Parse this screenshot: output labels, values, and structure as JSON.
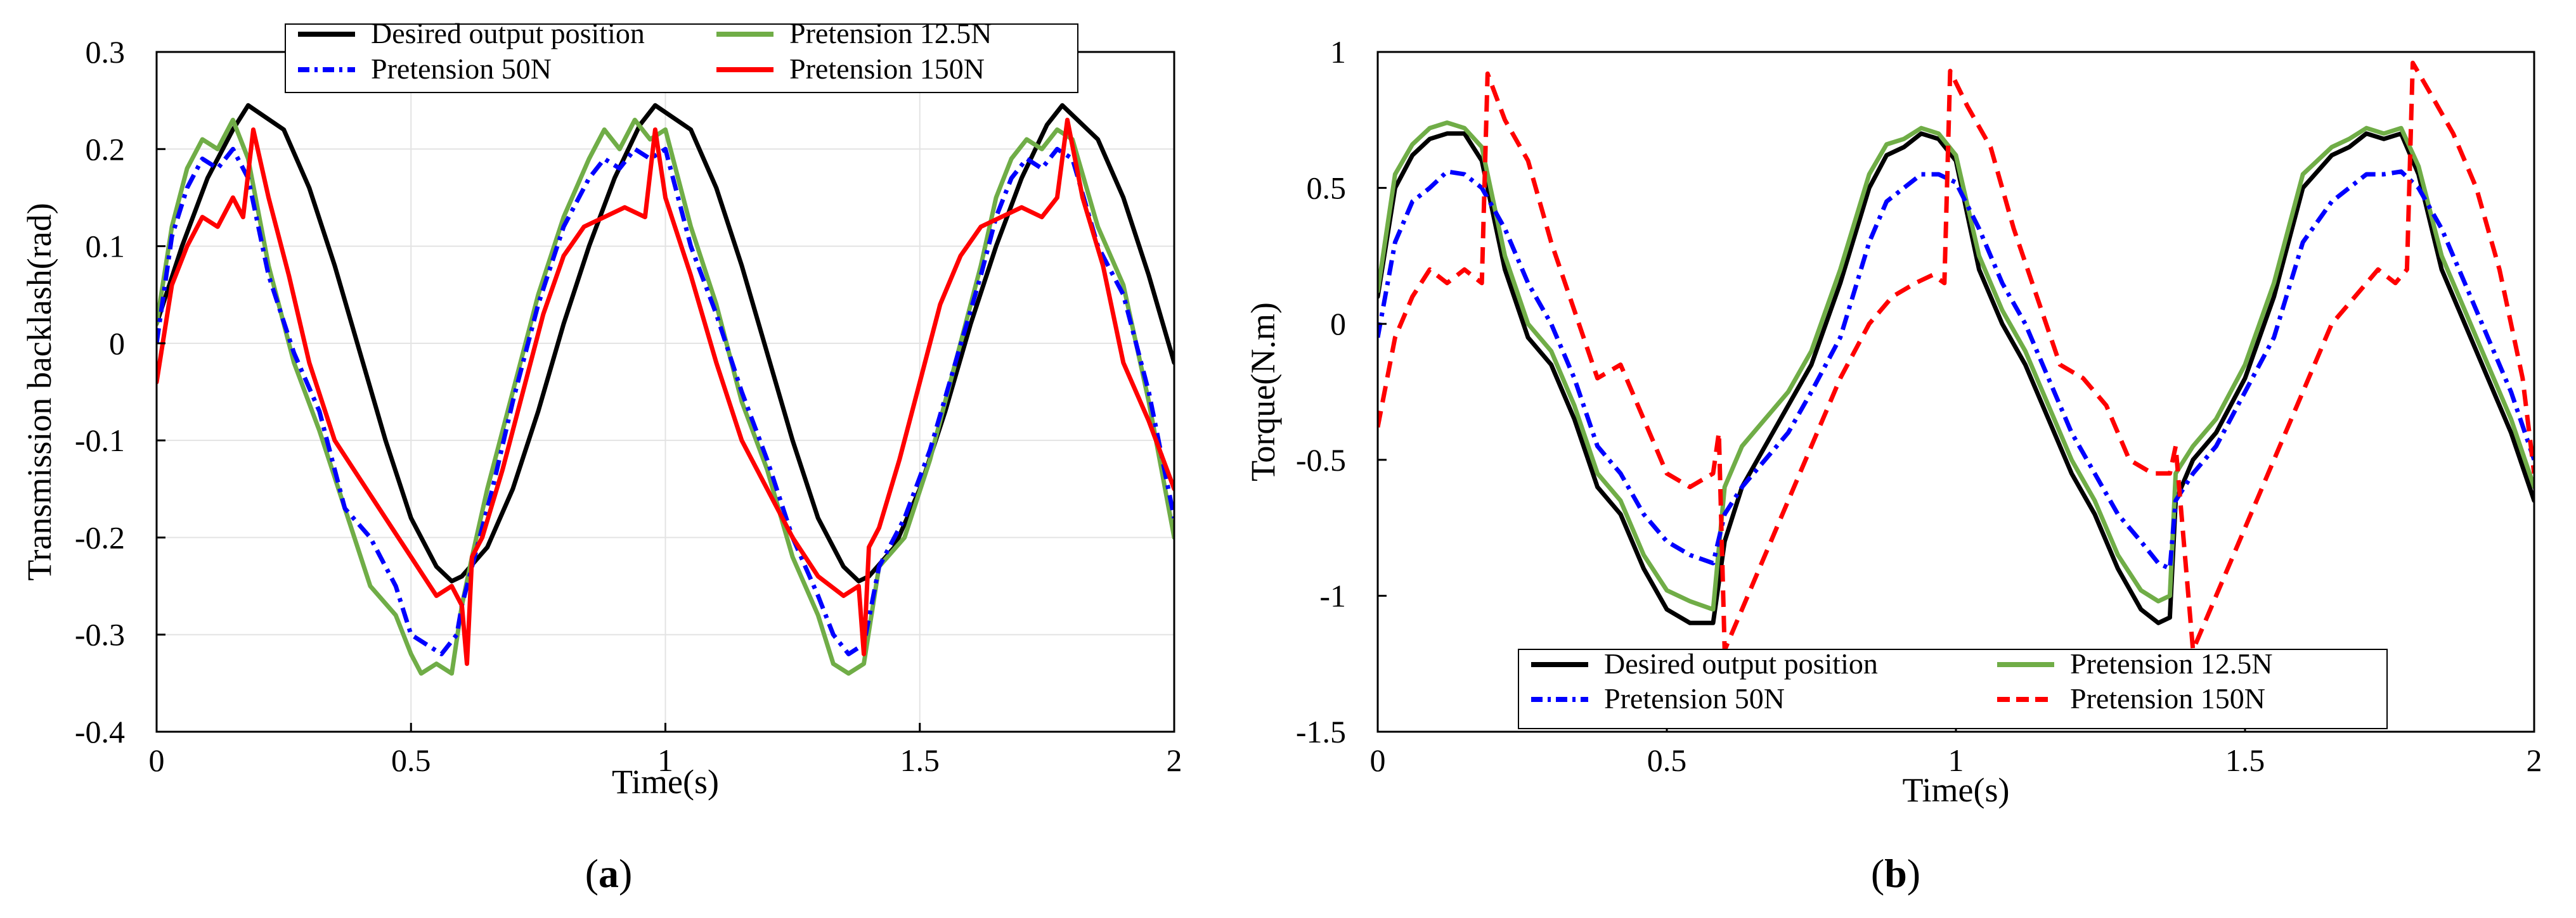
{
  "figure": {
    "panel_labels": [
      "a",
      "b"
    ]
  },
  "chart_data": [
    {
      "id": "a",
      "type": "line",
      "title": "",
      "xlabel": "Time(s)",
      "ylabel": "Transmission backlash(rad)",
      "xlim": [
        0,
        2
      ],
      "ylim": [
        -0.4,
        0.3
      ],
      "xticks": [
        0,
        0.5,
        1,
        1.5,
        2
      ],
      "xtick_labels": [
        "0",
        "0.5",
        "1",
        "1.5",
        "2"
      ],
      "yticks": [
        0.3,
        0.2,
        0.1,
        0,
        -0.1,
        -0.2,
        -0.3,
        -0.4
      ],
      "ytick_labels": [
        "0.3",
        "0.2",
        "0.1",
        "0",
        "-0.1",
        "-0.2",
        "-0.3",
        "-0.4"
      ],
      "grid": true,
      "legend": "top",
      "series": [
        {
          "name": "Desired output position",
          "color": "#000000",
          "dash": "solid",
          "x": [
            0,
            0.05,
            0.1,
            0.15,
            0.18,
            0.25,
            0.3,
            0.35,
            0.4,
            0.45,
            0.5,
            0.55,
            0.58,
            0.6,
            0.65,
            0.7,
            0.75,
            0.8,
            0.85,
            0.9,
            0.95,
            0.98,
            1.05,
            1.1,
            1.15,
            1.2,
            1.25,
            1.3,
            1.35,
            1.38,
            1.4,
            1.45,
            1.5,
            1.55,
            1.6,
            1.65,
            1.7,
            1.75,
            1.78,
            1.85,
            1.9,
            1.95,
            2.0
          ],
          "y": [
            0.02,
            0.1,
            0.17,
            0.22,
            0.245,
            0.22,
            0.16,
            0.08,
            -0.01,
            -0.1,
            -0.18,
            -0.23,
            -0.245,
            -0.24,
            -0.21,
            -0.15,
            -0.07,
            0.02,
            0.1,
            0.17,
            0.225,
            0.245,
            0.22,
            0.16,
            0.08,
            -0.01,
            -0.1,
            -0.18,
            -0.23,
            -0.245,
            -0.24,
            -0.21,
            -0.15,
            -0.07,
            0.02,
            0.1,
            0.17,
            0.225,
            0.245,
            0.21,
            0.15,
            0.07,
            -0.02
          ]
        },
        {
          "name": "Pretension 12.5N",
          "color": "#70ad47",
          "dash": "solid",
          "x": [
            0,
            0.03,
            0.06,
            0.09,
            0.12,
            0.15,
            0.18,
            0.22,
            0.27,
            0.32,
            0.37,
            0.42,
            0.47,
            0.5,
            0.52,
            0.55,
            0.58,
            0.6,
            0.62,
            0.65,
            0.7,
            0.75,
            0.8,
            0.85,
            0.88,
            0.91,
            0.94,
            0.97,
            1.0,
            1.05,
            1.1,
            1.15,
            1.2,
            1.25,
            1.3,
            1.33,
            1.36,
            1.39,
            1.42,
            1.47,
            1.52,
            1.57,
            1.62,
            1.65,
            1.68,
            1.71,
            1.74,
            1.77,
            1.8,
            1.85,
            1.9,
            1.95,
            2.0
          ],
          "y": [
            0.02,
            0.12,
            0.18,
            0.21,
            0.2,
            0.23,
            0.19,
            0.08,
            -0.02,
            -0.09,
            -0.17,
            -0.25,
            -0.28,
            -0.32,
            -0.34,
            -0.33,
            -0.34,
            -0.27,
            -0.22,
            -0.15,
            -0.05,
            0.05,
            0.13,
            0.19,
            0.22,
            0.2,
            0.23,
            0.21,
            0.22,
            0.12,
            0.04,
            -0.06,
            -0.13,
            -0.22,
            -0.28,
            -0.33,
            -0.34,
            -0.33,
            -0.23,
            -0.2,
            -0.12,
            -0.02,
            0.08,
            0.15,
            0.19,
            0.21,
            0.2,
            0.22,
            0.21,
            0.12,
            0.06,
            -0.06,
            -0.2
          ]
        },
        {
          "name": "Pretension 50N",
          "color": "#0000ff",
          "dash": "dashdot",
          "x": [
            0,
            0.03,
            0.06,
            0.09,
            0.12,
            0.15,
            0.18,
            0.22,
            0.27,
            0.32,
            0.37,
            0.42,
            0.47,
            0.5,
            0.53,
            0.56,
            0.59,
            0.6,
            0.62,
            0.66,
            0.7,
            0.75,
            0.8,
            0.85,
            0.88,
            0.91,
            0.94,
            0.97,
            1.0,
            1.05,
            1.1,
            1.15,
            1.2,
            1.25,
            1.3,
            1.33,
            1.36,
            1.39,
            1.42,
            1.47,
            1.52,
            1.57,
            1.62,
            1.65,
            1.68,
            1.71,
            1.74,
            1.77,
            1.8,
            1.85,
            1.9,
            1.95,
            2.0
          ],
          "y": [
            0.0,
            0.11,
            0.16,
            0.19,
            0.18,
            0.2,
            0.17,
            0.07,
            -0.01,
            -0.07,
            -0.17,
            -0.2,
            -0.25,
            -0.3,
            -0.31,
            -0.32,
            -0.3,
            -0.27,
            -0.23,
            -0.15,
            -0.06,
            0.04,
            0.12,
            0.17,
            0.19,
            0.18,
            0.2,
            0.19,
            0.2,
            0.1,
            0.03,
            -0.05,
            -0.12,
            -0.2,
            -0.26,
            -0.3,
            -0.32,
            -0.31,
            -0.23,
            -0.18,
            -0.11,
            -0.02,
            0.07,
            0.13,
            0.17,
            0.19,
            0.18,
            0.2,
            0.19,
            0.1,
            0.05,
            -0.05,
            -0.18
          ]
        },
        {
          "name": "Pretension 150N",
          "color": "#ff0000",
          "dash": "solid",
          "x": [
            0,
            0.03,
            0.06,
            0.09,
            0.12,
            0.15,
            0.17,
            0.19,
            0.22,
            0.26,
            0.3,
            0.35,
            0.4,
            0.45,
            0.5,
            0.55,
            0.58,
            0.6,
            0.61,
            0.62,
            0.64,
            0.68,
            0.72,
            0.76,
            0.8,
            0.84,
            0.88,
            0.92,
            0.96,
            0.98,
            1.0,
            1.05,
            1.1,
            1.15,
            1.2,
            1.25,
            1.3,
            1.35,
            1.38,
            1.39,
            1.4,
            1.42,
            1.46,
            1.5,
            1.54,
            1.58,
            1.62,
            1.66,
            1.7,
            1.74,
            1.77,
            1.79,
            1.82,
            1.86,
            1.9,
            1.95,
            2.0
          ],
          "y": [
            -0.04,
            0.06,
            0.1,
            0.13,
            0.12,
            0.15,
            0.13,
            0.22,
            0.15,
            0.07,
            -0.02,
            -0.1,
            -0.14,
            -0.18,
            -0.22,
            -0.26,
            -0.25,
            -0.27,
            -0.33,
            -0.22,
            -0.2,
            -0.13,
            -0.05,
            0.03,
            0.09,
            0.12,
            0.13,
            0.14,
            0.13,
            0.22,
            0.15,
            0.07,
            -0.02,
            -0.1,
            -0.15,
            -0.2,
            -0.24,
            -0.26,
            -0.25,
            -0.32,
            -0.21,
            -0.19,
            -0.12,
            -0.04,
            0.04,
            0.09,
            0.12,
            0.13,
            0.14,
            0.13,
            0.15,
            0.23,
            0.15,
            0.08,
            -0.02,
            -0.08,
            -0.15
          ]
        }
      ]
    },
    {
      "id": "b",
      "type": "line",
      "title": "",
      "xlabel": "Time(s)",
      "ylabel": "Torque(N.m)",
      "xlim": [
        0,
        2
      ],
      "ylim": [
        -1.5,
        1
      ],
      "xticks": [
        0,
        0.5,
        1,
        1.5,
        2
      ],
      "xtick_labels": [
        "0",
        "0.5",
        "1",
        "1.5",
        "2"
      ],
      "yticks": [
        1,
        0.5,
        0,
        -0.5,
        -1,
        -1.5
      ],
      "ytick_labels": [
        "1",
        "0.5",
        "0",
        "-0.5",
        "-1",
        "-1.5"
      ],
      "grid": false,
      "legend": "bottom",
      "series": [
        {
          "name": "Desired output position",
          "color": "#000000",
          "dash": "solid",
          "x": [
            0,
            0.03,
            0.06,
            0.09,
            0.12,
            0.15,
            0.18,
            0.22,
            0.26,
            0.3,
            0.34,
            0.38,
            0.42,
            0.46,
            0.5,
            0.54,
            0.58,
            0.6,
            0.63,
            0.67,
            0.71,
            0.75,
            0.8,
            0.85,
            0.88,
            0.91,
            0.94,
            0.97,
            1.0,
            1.04,
            1.08,
            1.12,
            1.16,
            1.2,
            1.24,
            1.28,
            1.32,
            1.35,
            1.37,
            1.38,
            1.41,
            1.45,
            1.5,
            1.55,
            1.6,
            1.65,
            1.68,
            1.71,
            1.74,
            1.77,
            1.8,
            1.84,
            1.88,
            1.92,
            1.96,
            2.0
          ],
          "y": [
            0.1,
            0.5,
            0.62,
            0.68,
            0.7,
            0.7,
            0.6,
            0.2,
            -0.05,
            -0.15,
            -0.35,
            -0.6,
            -0.7,
            -0.9,
            -1.05,
            -1.1,
            -1.1,
            -0.8,
            -0.6,
            -0.45,
            -0.3,
            -0.15,
            0.15,
            0.5,
            0.62,
            0.65,
            0.7,
            0.68,
            0.6,
            0.2,
            0.0,
            -0.15,
            -0.35,
            -0.55,
            -0.7,
            -0.9,
            -1.05,
            -1.1,
            -1.08,
            -0.65,
            -0.5,
            -0.4,
            -0.2,
            0.1,
            0.5,
            0.62,
            0.65,
            0.7,
            0.68,
            0.7,
            0.55,
            0.2,
            0.0,
            -0.2,
            -0.4,
            -0.65
          ]
        },
        {
          "name": "Pretension 12.5N",
          "color": "#70ad47",
          "dash": "solid",
          "x": [
            0,
            0.03,
            0.06,
            0.09,
            0.12,
            0.15,
            0.18,
            0.22,
            0.26,
            0.3,
            0.34,
            0.38,
            0.42,
            0.46,
            0.5,
            0.54,
            0.58,
            0.6,
            0.63,
            0.67,
            0.71,
            0.75,
            0.8,
            0.85,
            0.88,
            0.91,
            0.94,
            0.97,
            1.0,
            1.04,
            1.08,
            1.12,
            1.16,
            1.2,
            1.24,
            1.28,
            1.32,
            1.35,
            1.37,
            1.38,
            1.41,
            1.45,
            1.5,
            1.55,
            1.6,
            1.65,
            1.68,
            1.71,
            1.74,
            1.77,
            1.8,
            1.84,
            1.88,
            1.92,
            1.96,
            2.0
          ],
          "y": [
            0.12,
            0.55,
            0.66,
            0.72,
            0.74,
            0.72,
            0.65,
            0.25,
            0.0,
            -0.1,
            -0.3,
            -0.55,
            -0.65,
            -0.85,
            -0.98,
            -1.02,
            -1.05,
            -0.6,
            -0.45,
            -0.35,
            -0.25,
            -0.1,
            0.2,
            0.55,
            0.66,
            0.68,
            0.72,
            0.7,
            0.62,
            0.25,
            0.05,
            -0.1,
            -0.3,
            -0.5,
            -0.65,
            -0.85,
            -0.98,
            -1.02,
            -1.0,
            -0.55,
            -0.45,
            -0.35,
            -0.15,
            0.15,
            0.55,
            0.65,
            0.68,
            0.72,
            0.7,
            0.72,
            0.58,
            0.25,
            0.05,
            -0.15,
            -0.35,
            -0.6
          ]
        },
        {
          "name": "Pretension 50N",
          "color": "#0000ff",
          "dash": "dashdot",
          "x": [
            0,
            0.03,
            0.06,
            0.09,
            0.12,
            0.15,
            0.18,
            0.22,
            0.26,
            0.3,
            0.34,
            0.38,
            0.42,
            0.46,
            0.5,
            0.54,
            0.58,
            0.6,
            0.63,
            0.67,
            0.71,
            0.75,
            0.8,
            0.85,
            0.88,
            0.91,
            0.94,
            0.97,
            1.0,
            1.04,
            1.08,
            1.12,
            1.16,
            1.2,
            1.24,
            1.28,
            1.32,
            1.35,
            1.37,
            1.38,
            1.41,
            1.45,
            1.5,
            1.55,
            1.6,
            1.65,
            1.68,
            1.71,
            1.74,
            1.77,
            1.8,
            1.84,
            1.88,
            1.92,
            1.96,
            2.0
          ],
          "y": [
            -0.05,
            0.3,
            0.45,
            0.5,
            0.56,
            0.55,
            0.5,
            0.35,
            0.15,
            0.0,
            -0.2,
            -0.45,
            -0.55,
            -0.7,
            -0.8,
            -0.85,
            -0.88,
            -0.7,
            -0.6,
            -0.5,
            -0.4,
            -0.25,
            -0.05,
            0.3,
            0.45,
            0.5,
            0.55,
            0.55,
            0.52,
            0.35,
            0.15,
            0.0,
            -0.2,
            -0.4,
            -0.55,
            -0.7,
            -0.8,
            -0.88,
            -0.9,
            -0.65,
            -0.55,
            -0.45,
            -0.25,
            -0.05,
            0.3,
            0.45,
            0.5,
            0.55,
            0.55,
            0.56,
            0.5,
            0.35,
            0.15,
            -0.05,
            -0.25,
            -0.5
          ]
        },
        {
          "name": "Pretension 150N",
          "color": "#ff0000",
          "dash": "dashed",
          "x": [
            0,
            0.03,
            0.06,
            0.09,
            0.12,
            0.15,
            0.18,
            0.19,
            0.22,
            0.26,
            0.3,
            0.34,
            0.38,
            0.42,
            0.46,
            0.5,
            0.54,
            0.58,
            0.59,
            0.6,
            0.63,
            0.67,
            0.71,
            0.75,
            0.8,
            0.85,
            0.89,
            0.93,
            0.96,
            0.98,
            0.99,
            1.02,
            1.06,
            1.1,
            1.14,
            1.18,
            1.22,
            1.26,
            1.3,
            1.34,
            1.37,
            1.38,
            1.41,
            1.45,
            1.5,
            1.55,
            1.6,
            1.65,
            1.69,
            1.73,
            1.76,
            1.78,
            1.79,
            1.82,
            1.86,
            1.9,
            1.94,
            1.98,
            2.0
          ],
          "y": [
            -0.38,
            -0.05,
            0.1,
            0.2,
            0.15,
            0.2,
            0.15,
            0.92,
            0.75,
            0.6,
            0.3,
            0.05,
            -0.2,
            -0.15,
            -0.35,
            -0.55,
            -0.6,
            -0.55,
            -0.4,
            -1.2,
            -1.05,
            -0.85,
            -0.65,
            -0.45,
            -0.2,
            0.0,
            0.1,
            0.15,
            0.18,
            0.15,
            0.93,
            0.8,
            0.65,
            0.35,
            0.1,
            -0.15,
            -0.2,
            -0.3,
            -0.5,
            -0.55,
            -0.55,
            -0.45,
            -1.2,
            -1.0,
            -0.75,
            -0.5,
            -0.25,
            0.0,
            0.1,
            0.2,
            0.15,
            0.2,
            0.96,
            0.85,
            0.7,
            0.5,
            0.2,
            -0.2,
            -0.55
          ]
        }
      ]
    }
  ]
}
